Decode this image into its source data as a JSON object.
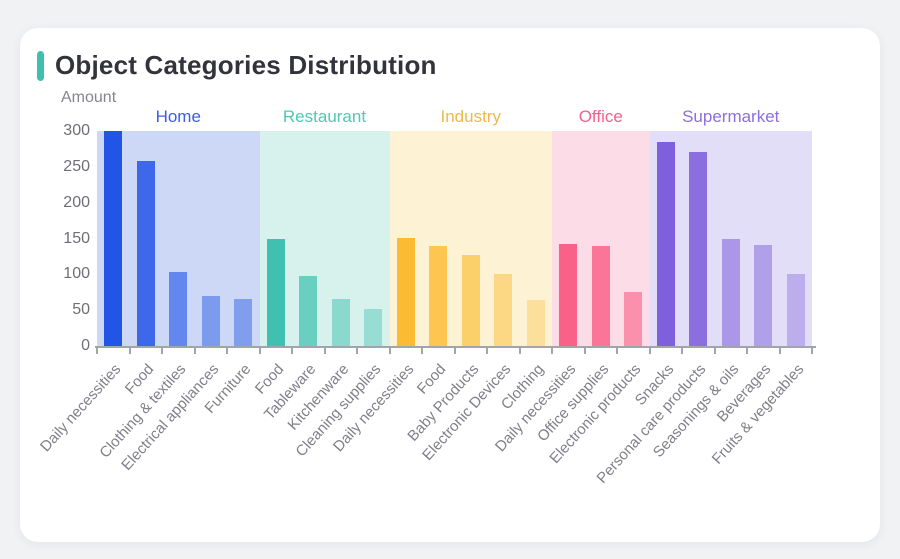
{
  "page": {
    "background": "#f1f2f4",
    "card_background": "#ffffff",
    "accent_color": "#3fc0ae"
  },
  "title": "Object Categories Distribution",
  "y_axis": {
    "label": "Amount",
    "ticks": [
      300,
      250,
      200,
      150,
      100,
      50,
      0
    ]
  },
  "chart_data": {
    "type": "bar",
    "title": "Object Categories Distribution",
    "xlabel": "",
    "ylabel": "Amount",
    "ylim": [
      0,
      300
    ],
    "grid": false,
    "legend_position": "none",
    "groups": [
      {
        "name": "Home",
        "label_color": "#3a5ce8",
        "bar_color": "#2255e6",
        "panel_color": "#ccd8f5",
        "categories": [
          "Daily necessities",
          "Food",
          "Clothing & textiles",
          "Electrical appliances",
          "Furniture"
        ],
        "values": [
          300,
          258,
          103,
          70,
          65
        ],
        "alphas": [
          1,
          0.85,
          0.62,
          0.47,
          0.44
        ]
      },
      {
        "name": "Restaurant",
        "label_color": "#4ccab2",
        "bar_color": "#3fc0b0",
        "panel_color": "#d7f2ec",
        "categories": [
          "Food",
          "Tableware",
          "Kitchenware",
          "Cleaning supplies"
        ],
        "values": [
          149,
          98,
          66,
          51
        ],
        "alphas": [
          1,
          0.72,
          0.5,
          0.42
        ]
      },
      {
        "name": "Industry",
        "label_color": "#edb948",
        "bar_color": "#fbbc34",
        "panel_color": "#fdf2d4",
        "categories": [
          "Daily necessities",
          "Food",
          "Baby Products",
          "Electronic Devices",
          "Clothing"
        ],
        "values": [
          151,
          139,
          127,
          100,
          64
        ],
        "alphas": [
          1,
          0.82,
          0.66,
          0.5,
          0.35
        ]
      },
      {
        "name": "Office",
        "label_color": "#f4618c",
        "bar_color": "#fa6189",
        "panel_color": "#fcdde7",
        "categories": [
          "Daily necessities",
          "Office supplies",
          "Electronic products"
        ],
        "values": [
          143,
          139,
          75
        ],
        "alphas": [
          1,
          0.84,
          0.62
        ]
      },
      {
        "name": "Supermarket",
        "label_color": "#8c6fdf",
        "bar_color": "#7e60dc",
        "panel_color": "#e3def7",
        "categories": [
          "Snacks",
          "Personal care products",
          "Seasonings & oils",
          "Beverages",
          "Fruits & vegetables"
        ],
        "values": [
          284,
          270,
          149,
          141,
          101
        ],
        "alphas": [
          1,
          0.88,
          0.56,
          0.5,
          0.38
        ]
      }
    ]
  }
}
